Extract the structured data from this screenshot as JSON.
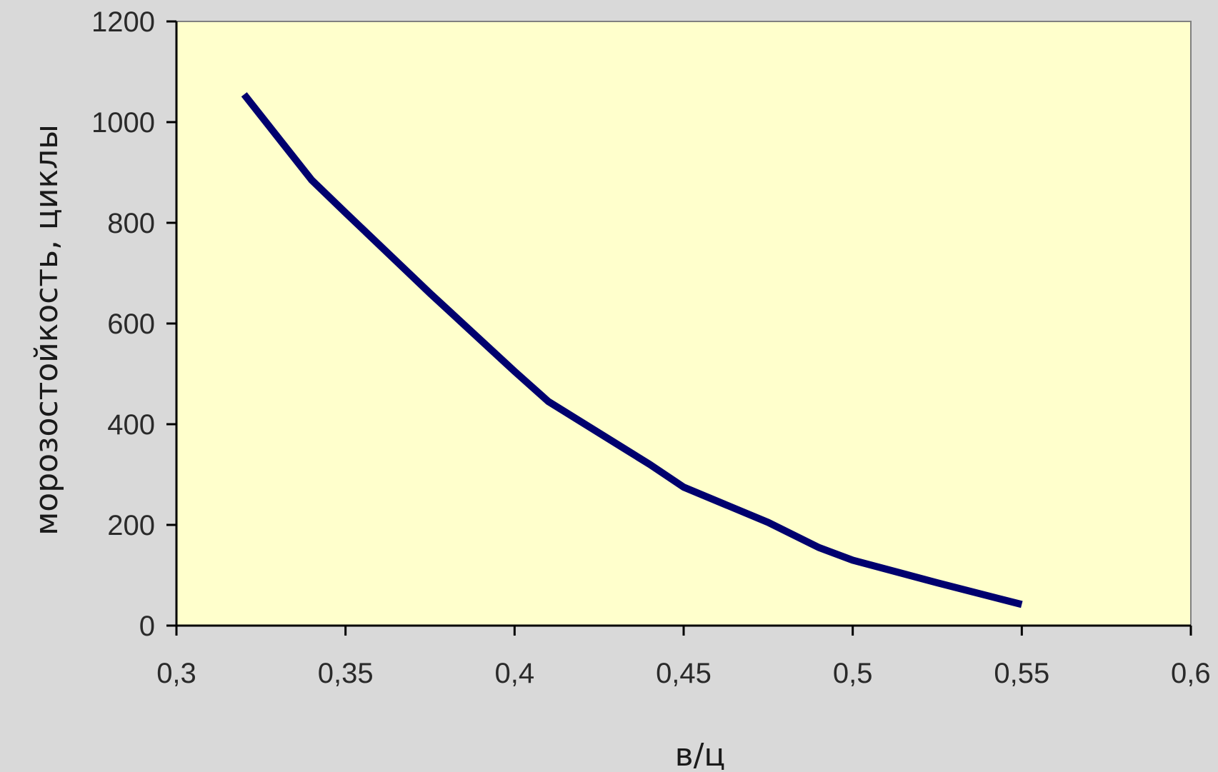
{
  "chart_data": {
    "type": "line",
    "title": "",
    "xlabel": "в/ц",
    "ylabel": "морозостойкость, циклы",
    "xlim": [
      0.3,
      0.6
    ],
    "ylim": [
      0,
      1200
    ],
    "x_ticks": [
      "0,3",
      "0,35",
      "0,4",
      "0,45",
      "0,5",
      "0,55",
      "0,6"
    ],
    "y_ticks": [
      "0",
      "200",
      "400",
      "600",
      "800",
      "1000",
      "1200"
    ],
    "grid": false,
    "series": [
      {
        "x": [
          0.32,
          0.34,
          0.35,
          0.375,
          0.4,
          0.41,
          0.44,
          0.45,
          0.475,
          0.49,
          0.5,
          0.525,
          0.55
        ],
        "y": [
          1055,
          885,
          820,
          660,
          505,
          445,
          320,
          275,
          205,
          155,
          130,
          85,
          42
        ]
      }
    ],
    "colors": {
      "background": "#d9d9d9",
      "plot_area": "#ffffcc",
      "line": "#00006e",
      "axis": "#000000"
    }
  }
}
